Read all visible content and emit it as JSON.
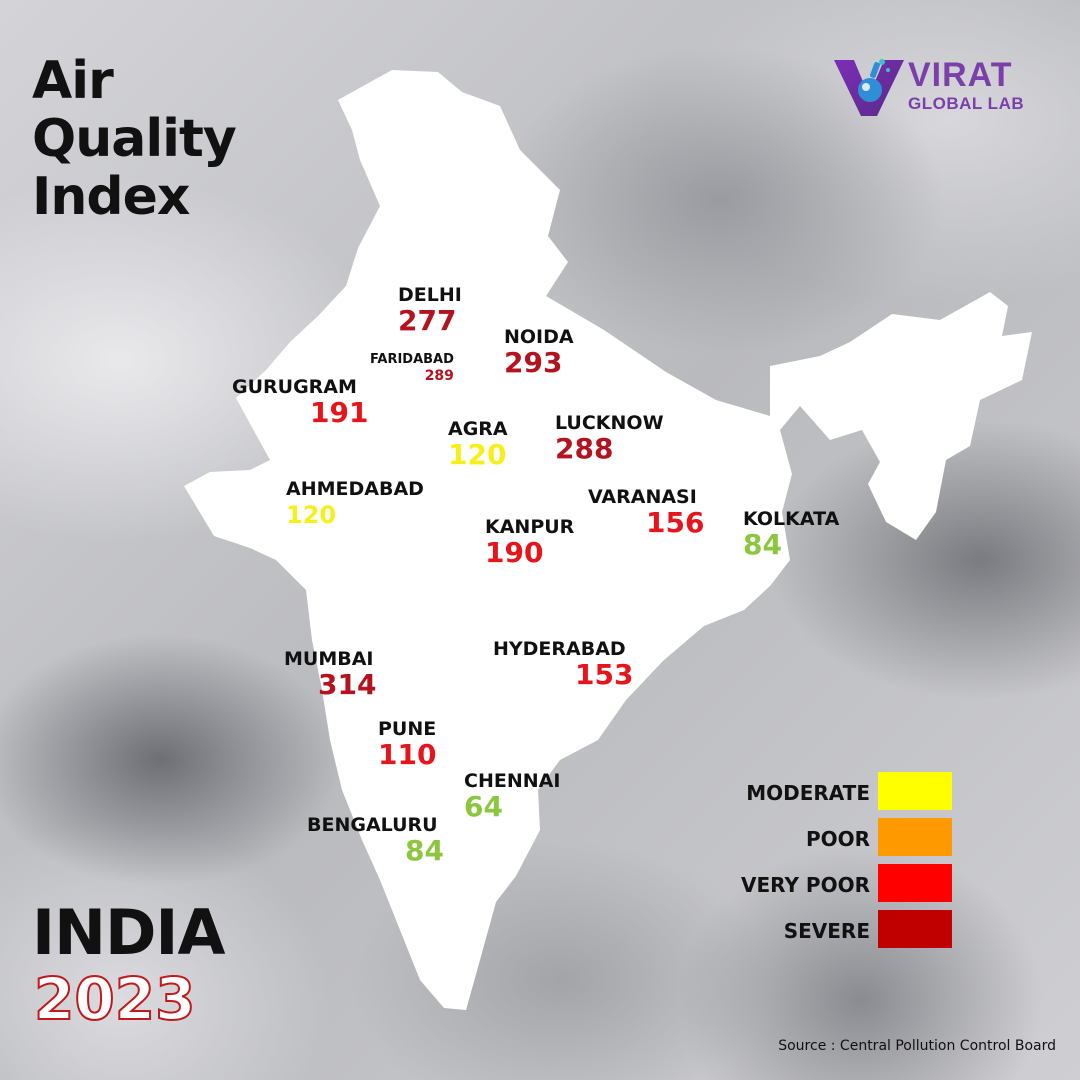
{
  "title_lines": [
    "Air",
    "Quality",
    "Index"
  ],
  "country": "INDIA",
  "year": "2023",
  "logo": {
    "name": "VIRAT",
    "sub": "GLOBAL LAB",
    "icon": "flask-v-logo-icon",
    "color": "#7a3fa8"
  },
  "colors": {
    "moderate": "#ffff00",
    "poor": "#ff9900",
    "very_poor": "#ff0000",
    "severe": "#c00000",
    "good": "#8cc63f",
    "severe_text": "#b3121e",
    "very_poor_text": "#e8141b",
    "moderate_text": "#f7ef19",
    "good_text": "#8cc63f"
  },
  "cities": [
    {
      "id": "delhi",
      "name": "DELHI",
      "aqi": 277,
      "color": "#b3121e"
    },
    {
      "id": "noida",
      "name": "NOIDA",
      "aqi": 293,
      "color": "#b3121e"
    },
    {
      "id": "faridabad",
      "name": "FARIDABAD",
      "aqi": 289,
      "color": "#b3121e"
    },
    {
      "id": "gurugram",
      "name": "GURUGRAM",
      "aqi": 191,
      "color": "#e8141b"
    },
    {
      "id": "agra",
      "name": "AGRA",
      "aqi": 120,
      "color": "#f7ef19"
    },
    {
      "id": "lucknow",
      "name": "LUCKNOW",
      "aqi": 288,
      "color": "#b3121e"
    },
    {
      "id": "ahmedabad",
      "name": "AHMEDABAD",
      "aqi": 120,
      "color": "#f7ef19"
    },
    {
      "id": "varanasi",
      "name": "VARANASI",
      "aqi": 156,
      "color": "#e8141b"
    },
    {
      "id": "kanpur",
      "name": "KANPUR",
      "aqi": 190,
      "color": "#e8141b"
    },
    {
      "id": "kolkata",
      "name": "KOLKATA",
      "aqi": 84,
      "color": "#8cc63f"
    },
    {
      "id": "mumbai",
      "name": "MUMBAI",
      "aqi": 314,
      "color": "#b3121e"
    },
    {
      "id": "hyderabad",
      "name": "HYDERABAD",
      "aqi": 153,
      "color": "#e8141b"
    },
    {
      "id": "pune",
      "name": "PUNE",
      "aqi": 110,
      "color": "#e8141b"
    },
    {
      "id": "chennai",
      "name": "CHENNAI",
      "aqi": 64,
      "color": "#8cc63f"
    },
    {
      "id": "bengaluru",
      "name": "BENGALURU",
      "aqi": 84,
      "color": "#8cc63f"
    }
  ],
  "legend": [
    {
      "label": "MODERATE",
      "color": "#ffff00"
    },
    {
      "label": "POOR",
      "color": "#ff9900"
    },
    {
      "label": "VERY POOR",
      "color": "#ff0000"
    },
    {
      "label": "SEVERE",
      "color": "#c00000"
    }
  ],
  "source": "Source : Central Pollution Control Board"
}
